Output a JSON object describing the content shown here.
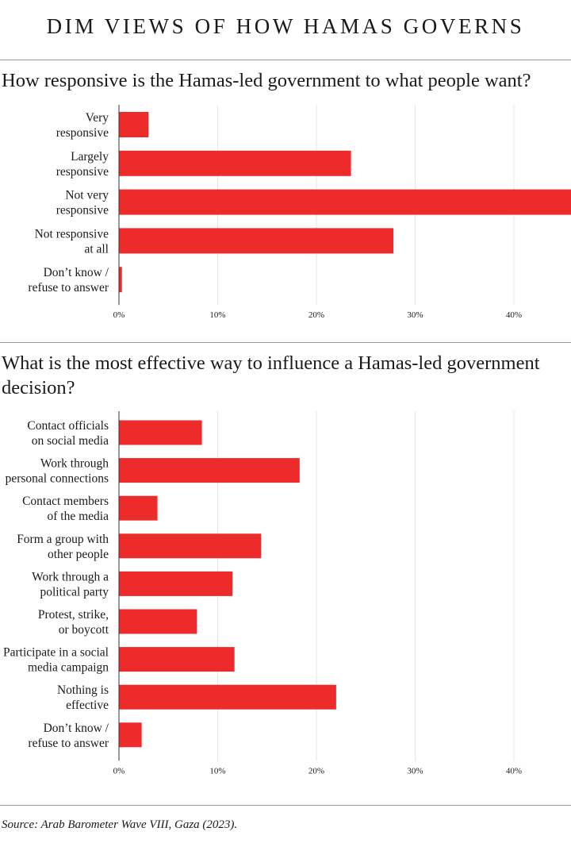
{
  "header": {
    "title": "DIM VIEWS OF HOW HAMAS GOVERNS"
  },
  "chart1": {
    "question": "How responsive is the Hamas-led government to what people want?"
  },
  "chart2": {
    "question": "What is the most effective way to influence a Hamas-led government decision?"
  },
  "footer": {
    "source": "Source: Arab Barometer Wave VIII, Gaza (2023)."
  },
  "colors": {
    "bar": "#ee2b2b",
    "grid": "#e6e6e6",
    "axis": "#333333"
  },
  "chart_data": [
    {
      "type": "bar",
      "orientation": "horizontal",
      "title": "How responsive is the Hamas-led government to what people want?",
      "categories": [
        [
          "Very",
          "responsive"
        ],
        [
          "Largely",
          "responsive"
        ],
        [
          "Not very",
          "responsive"
        ],
        [
          "Not responsive",
          "at all"
        ],
        [
          "Don’t know /",
          "refuse to answer"
        ]
      ],
      "values": [
        3,
        23.5,
        46,
        27.8,
        0.3
      ],
      "xticks": [
        0,
        10,
        20,
        30,
        40
      ],
      "xtick_labels": [
        "0%",
        "10%",
        "20%",
        "30%",
        "40%"
      ],
      "xlim": [
        0,
        46
      ],
      "grid": true
    },
    {
      "type": "bar",
      "orientation": "horizontal",
      "title": "What is the most effective way to influence a Hamas-led government decision?",
      "categories": [
        [
          "Contact officials",
          "on social media"
        ],
        [
          "Work through",
          "personal connections"
        ],
        [
          "Contact members",
          "of the media"
        ],
        [
          "Form a group with",
          "other people"
        ],
        [
          "Work through a",
          "political party"
        ],
        [
          "Protest, strike,",
          "or boycott"
        ],
        [
          "Participate in a social",
          "media campaign"
        ],
        [
          "Nothing is",
          "effective"
        ],
        [
          "Don’t know /",
          "refuse to answer"
        ]
      ],
      "values": [
        8.4,
        18.3,
        3.9,
        14.4,
        11.5,
        7.9,
        11.7,
        22,
        2.3
      ],
      "xticks": [
        0,
        10,
        20,
        30,
        40
      ],
      "xtick_labels": [
        "0%",
        "10%",
        "20%",
        "30%",
        "40%"
      ],
      "xlim": [
        0,
        46
      ],
      "grid": true
    }
  ]
}
